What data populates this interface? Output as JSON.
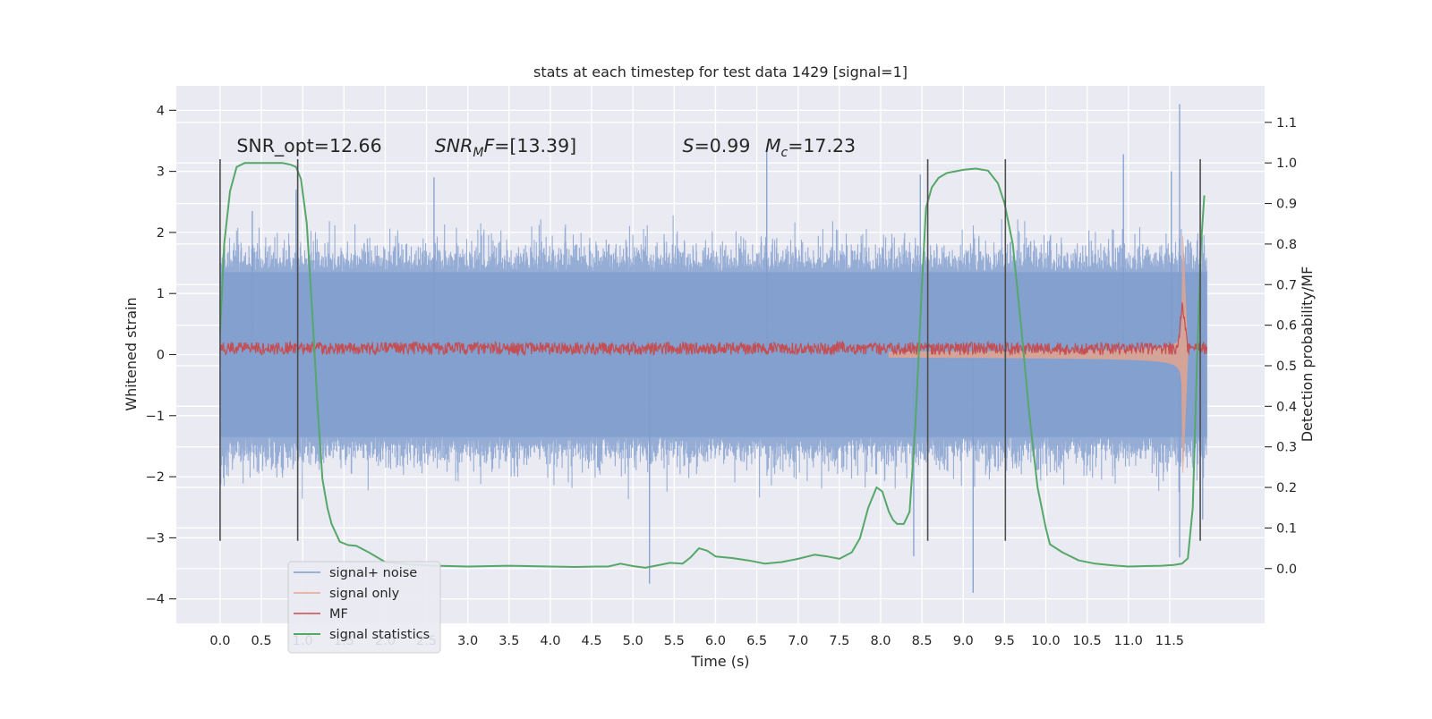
{
  "chart_data": {
    "type": "line",
    "title": "stats at each timestep for test data 1429 [signal=1]",
    "xlabel": "Time (s)",
    "ylabel": "Whitened strain",
    "y2label": "Detection probability/MF",
    "xlim": [
      -0.53,
      12.65
    ],
    "ylim": [
      -4.4,
      4.4
    ],
    "y2lim": [
      -0.135,
      1.19
    ],
    "x_ticks": [
      0.0,
      0.5,
      1.0,
      1.5,
      2.0,
      2.5,
      3.0,
      3.5,
      4.0,
      4.5,
      5.0,
      5.5,
      6.0,
      6.5,
      7.0,
      7.5,
      8.0,
      8.5,
      9.0,
      9.5,
      10.0,
      10.5,
      11.0,
      11.5
    ],
    "x_tick_labels": [
      "0.0",
      "0.5",
      "1.0",
      "1.5",
      "2.0",
      "2.5",
      "3.0",
      "3.5",
      "4.0",
      "4.5",
      "5.0",
      "5.5",
      "6.0",
      "6.5",
      "7.0",
      "7.5",
      "8.0",
      "8.5",
      "9.0",
      "9.5",
      "10.0",
      "10.5",
      "11.0",
      "11.5"
    ],
    "y_ticks": [
      4,
      3,
      2,
      1,
      0,
      -1,
      -2,
      -3,
      -4
    ],
    "y_tick_labels": [
      "4",
      "3",
      "2",
      "1",
      "0",
      "−1",
      "−2",
      "−3",
      "−4"
    ],
    "y2_ticks": [
      1.1,
      1.0,
      0.9,
      0.8,
      0.7,
      0.6,
      0.5,
      0.4,
      0.3,
      0.2,
      0.1,
      0.0
    ],
    "y2_tick_labels": [
      "1.1",
      "1.0",
      "0.9",
      "0.8",
      "0.7",
      "0.6",
      "0.5",
      "0.4",
      "0.3",
      "0.2",
      "0.1",
      "0.0"
    ],
    "grid": true,
    "legend_position": "bottom-left",
    "annotations": [
      {
        "text": "SNR_opt=12.66",
        "x": 0.2,
        "y": 3.32
      },
      {
        "text": "SNR_MF=[13.39]",
        "x": 2.6,
        "y": 3.32
      },
      {
        "text": "S=0.99",
        "x": 5.6,
        "y": 3.32
      },
      {
        "text": "M_c=17.23",
        "x": 6.6,
        "y": 3.32
      }
    ],
    "vertical_markers": [
      0.0,
      0.94,
      8.57,
      9.51,
      11.87
    ],
    "marker_ylim": [
      -3.05,
      3.2
    ],
    "series": [
      {
        "name": "signal+ noise",
        "axis": "left",
        "color": "#7f9ccd",
        "kind": "noise",
        "x_range": [
          0.0,
          11.95
        ],
        "spread": 1.2,
        "band_extent": 1.35,
        "spike_peaks": [
          {
            "x": 0.0,
            "y": 2.05
          },
          {
            "x": 0.39,
            "y": 2.35
          },
          {
            "x": 0.92,
            "y": 2.7
          },
          {
            "x": 2.59,
            "y": 2.9
          },
          {
            "x": 5.2,
            "y": -3.75
          },
          {
            "x": 6.62,
            "y": 3.35
          },
          {
            "x": 8.4,
            "y": -3.3
          },
          {
            "x": 8.48,
            "y": 2.95
          },
          {
            "x": 9.12,
            "y": -3.9
          },
          {
            "x": 10.94,
            "y": 3.28
          },
          {
            "x": 11.52,
            "y": 3.0
          },
          {
            "x": 11.62,
            "y": 4.1
          },
          {
            "x": 11.62,
            "y": -3.32
          },
          {
            "x": 11.9,
            "y": -2.7
          }
        ]
      },
      {
        "name": "signal only",
        "axis": "left",
        "color": "#e8a58c",
        "kind": "chirp",
        "x_range": [
          8.1,
          11.72
        ],
        "peak_time": 11.65,
        "peak_amplitude": 2.25
      },
      {
        "name": "MF",
        "axis": "left",
        "color": "#c44e52",
        "kind": "noise",
        "baseline": 0.1,
        "amplitude": 0.13,
        "x_range": [
          0.0,
          11.95
        ],
        "peak": {
          "x": 11.66,
          "y": 0.92
        }
      },
      {
        "name": "signal statistics",
        "axis": "right",
        "color": "#55a868",
        "kind": "line",
        "x": [
          0.0,
          0.05,
          0.12,
          0.2,
          0.3,
          0.45,
          0.6,
          0.75,
          0.85,
          0.92,
          0.98,
          1.05,
          1.12,
          1.18,
          1.24,
          1.3,
          1.35,
          1.45,
          1.55,
          1.65,
          1.8,
          2.0,
          2.3,
          2.6,
          3.0,
          3.5,
          4.0,
          4.3,
          4.55,
          4.7,
          4.85,
          5.0,
          5.15,
          5.3,
          5.45,
          5.6,
          5.7,
          5.8,
          5.9,
          6.0,
          6.2,
          6.4,
          6.6,
          6.8,
          7.0,
          7.2,
          7.35,
          7.5,
          7.65,
          7.75,
          7.85,
          7.95,
          8.02,
          8.1,
          8.15,
          8.2,
          8.28,
          8.35,
          8.42,
          8.5,
          8.55,
          8.62,
          8.7,
          8.8,
          9.0,
          9.15,
          9.3,
          9.42,
          9.5,
          9.6,
          9.7,
          9.8,
          9.9,
          10.0,
          10.05,
          10.2,
          10.4,
          10.6,
          10.8,
          11.0,
          11.2,
          11.4,
          11.55,
          11.65,
          11.72,
          11.78,
          11.83,
          11.88,
          11.92
        ],
        "y": [
          0.58,
          0.8,
          0.93,
          0.99,
          1.0,
          1.0,
          1.0,
          1.0,
          0.996,
          0.99,
          0.96,
          0.85,
          0.62,
          0.4,
          0.22,
          0.15,
          0.11,
          0.066,
          0.058,
          0.056,
          0.04,
          0.016,
          0.01,
          0.007,
          0.005,
          0.007,
          0.005,
          0.004,
          0.005,
          0.005,
          0.012,
          0.006,
          0.002,
          0.008,
          0.014,
          0.012,
          0.028,
          0.05,
          0.044,
          0.03,
          0.026,
          0.02,
          0.012,
          0.016,
          0.024,
          0.034,
          0.03,
          0.024,
          0.04,
          0.075,
          0.15,
          0.2,
          0.19,
          0.14,
          0.12,
          0.11,
          0.11,
          0.14,
          0.35,
          0.7,
          0.89,
          0.94,
          0.963,
          0.975,
          0.983,
          0.986,
          0.981,
          0.95,
          0.9,
          0.8,
          0.6,
          0.38,
          0.2,
          0.1,
          0.06,
          0.04,
          0.02,
          0.012,
          0.008,
          0.005,
          0.006,
          0.007,
          0.009,
          0.012,
          0.025,
          0.15,
          0.5,
          0.8,
          0.92
        ]
      }
    ]
  }
}
